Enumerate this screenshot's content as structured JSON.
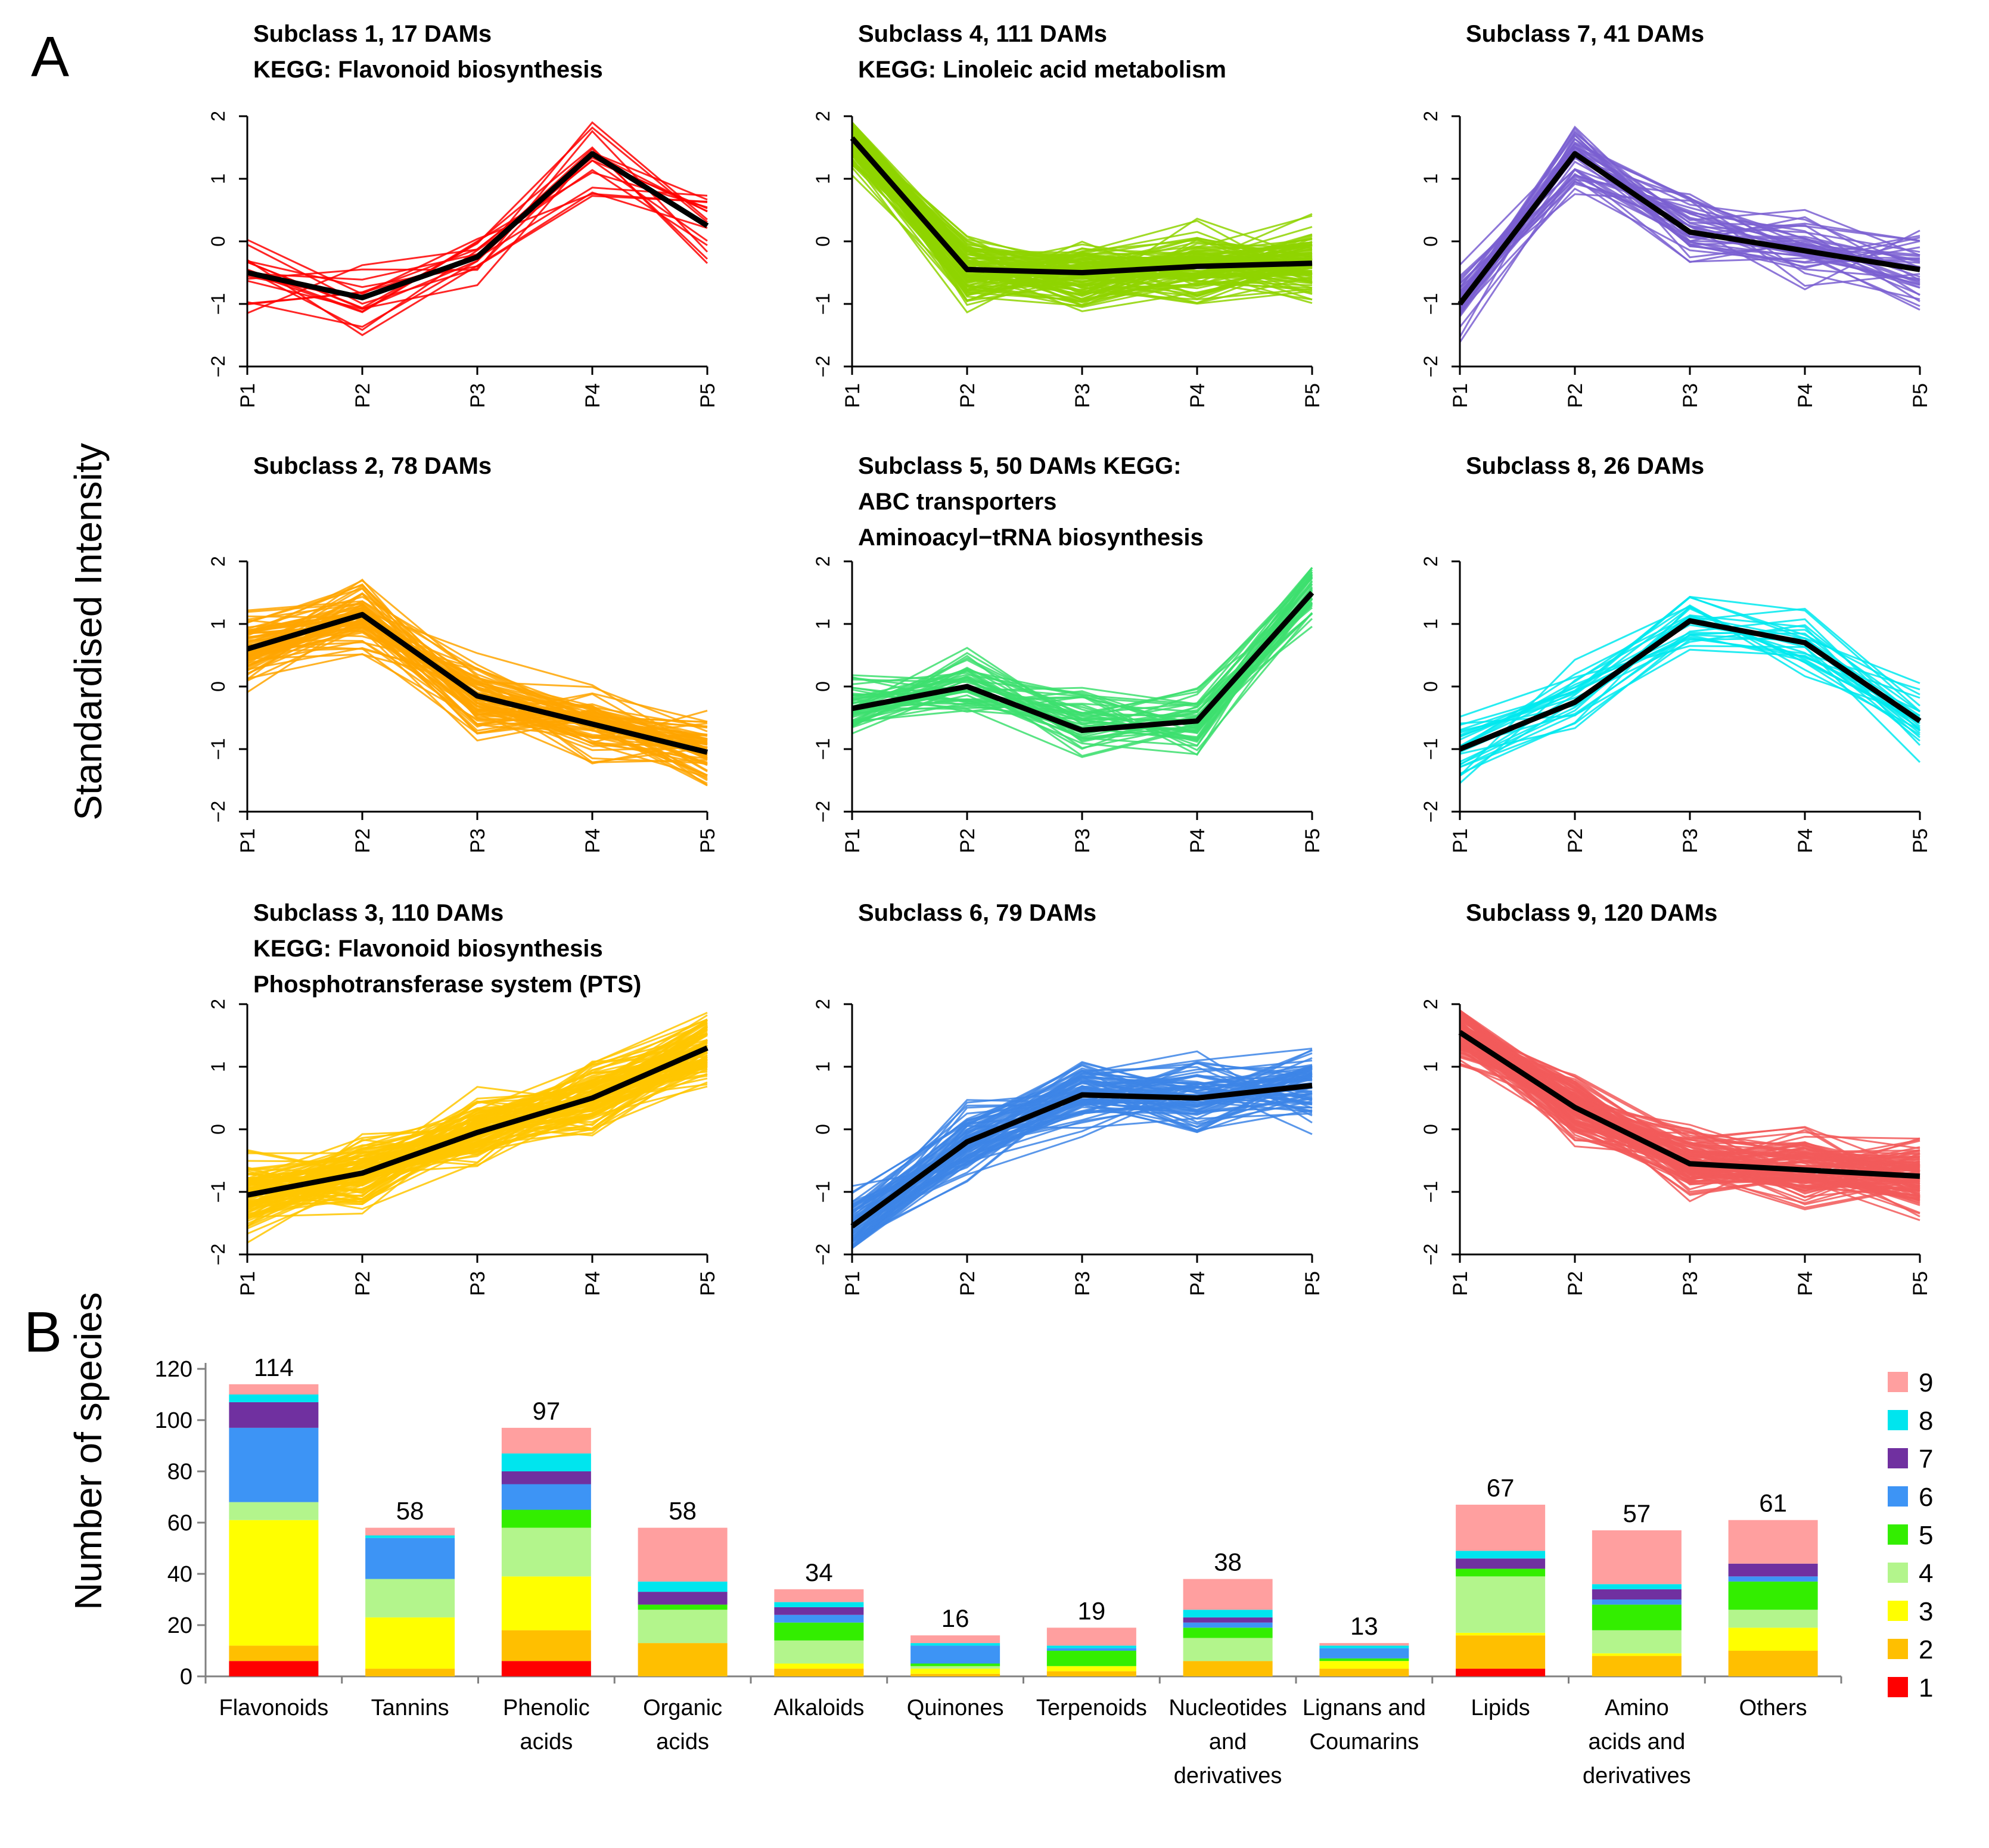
{
  "panel_labels": {
    "a": "A",
    "b": "B"
  },
  "chart_data": [
    {
      "panel": "A",
      "type": "line",
      "ylabel": "Standardised Intensity",
      "x": [
        "P1",
        "P2",
        "P3",
        "P4",
        "P5"
      ],
      "ylim": [
        -2,
        2
      ],
      "yticks": [
        "2",
        "1",
        "0",
        "−1",
        "−2"
      ],
      "subplots": [
        {
          "title_lines": [
            "Subclass 1, 17 DAMs",
            "KEGG: Flavonoid biosynthesis"
          ],
          "color": "#ff0000",
          "n_lines": 17,
          "mean": [
            -0.5,
            -0.9,
            -0.25,
            1.4,
            0.25
          ]
        },
        {
          "title_lines": [
            "Subclass 2, 78 DAMs"
          ],
          "color": "#ffa500",
          "n_lines": 78,
          "mean": [
            0.6,
            1.15,
            -0.15,
            -0.6,
            -1.05
          ]
        },
        {
          "title_lines": [
            "Subclass 3, 110 DAMs",
            "KEGG:    Flavonoid    biosynthesis",
            "Phosphotransferase system (PTS)"
          ],
          "color": "#ffc600",
          "n_lines": 110,
          "mean": [
            -1.05,
            -0.7,
            -0.05,
            0.5,
            1.3
          ]
        },
        {
          "title_lines": [
            "Subclass 4, 111 DAMs",
            "KEGG: Linoleic acid metabolism"
          ],
          "color": "#8fd400",
          "n_lines": 111,
          "mean": [
            1.65,
            -0.45,
            -0.5,
            -0.4,
            -0.35
          ]
        },
        {
          "title_lines": [
            "Subclass 5, 50 DAMs KEGG:",
            "ABC transporters",
            "Aminoacyl−tRNA biosynthesis"
          ],
          "color": "#3ddf6f",
          "n_lines": 50,
          "mean": [
            -0.35,
            0.0,
            -0.7,
            -0.55,
            1.5
          ]
        },
        {
          "title_lines": [
            "Subclass 6, 79 DAMs"
          ],
          "color": "#3d85e6",
          "n_lines": 79,
          "mean": [
            -1.55,
            -0.2,
            0.55,
            0.5,
            0.7
          ]
        },
        {
          "title_lines": [
            "Subclass 7, 41 DAMs"
          ],
          "color": "#7a5fd1",
          "n_lines": 41,
          "mean": [
            -1.0,
            1.4,
            0.15,
            -0.15,
            -0.45
          ]
        },
        {
          "title_lines": [
            "Subclass 8, 26 DAMs"
          ],
          "color": "#00e9ef",
          "n_lines": 26,
          "mean": [
            -1.0,
            -0.25,
            1.05,
            0.7,
            -0.55
          ]
        },
        {
          "title_lines": [
            "Subclass 9, 120 DAMs"
          ],
          "color": "#f25a5a",
          "n_lines": 120,
          "mean": [
            1.55,
            0.35,
            -0.55,
            -0.65,
            -0.75
          ]
        }
      ]
    },
    {
      "panel": "B",
      "type": "bar",
      "stacked": true,
      "ylabel": "Number of species",
      "ylim": [
        0,
        120
      ],
      "yticks": [
        0,
        20,
        40,
        60,
        80,
        100,
        120
      ],
      "categories": [
        [
          "Flavonoids"
        ],
        [
          "Tannins"
        ],
        [
          "Phenolic",
          "acids"
        ],
        [
          "Organic",
          "acids"
        ],
        [
          "Alkaloids"
        ],
        [
          "Quinones"
        ],
        [
          "Terpenoids"
        ],
        [
          "Nucleotides",
          "and",
          "derivatives"
        ],
        [
          "Lignans and",
          "Coumarins"
        ],
        [
          "Lipids"
        ],
        [
          "Amino",
          "acids and",
          "derivatives"
        ],
        [
          "Others"
        ]
      ],
      "totals": [
        114,
        58,
        97,
        58,
        34,
        16,
        19,
        38,
        13,
        67,
        57,
        61
      ],
      "series": [
        {
          "name": "1",
          "color": "#ff0000",
          "values": [
            6,
            0,
            6,
            0,
            0,
            0,
            0,
            0,
            0,
            3,
            0,
            0
          ]
        },
        {
          "name": "2",
          "color": "#ffbf00",
          "values": [
            6,
            3,
            12,
            13,
            3,
            1,
            2,
            6,
            3,
            13,
            8,
            10
          ]
        },
        {
          "name": "3",
          "color": "#ffff00",
          "values": [
            49,
            20,
            21,
            0,
            2,
            2,
            2,
            0,
            3,
            1,
            1,
            9
          ]
        },
        {
          "name": "4",
          "color": "#b3f58c",
          "values": [
            7,
            15,
            19,
            13,
            9,
            1,
            0,
            9,
            0,
            22,
            9,
            7
          ]
        },
        {
          "name": "5",
          "color": "#33ee00",
          "values": [
            0,
            0,
            7,
            2,
            7,
            1,
            6,
            4,
            1,
            3,
            10,
            11
          ]
        },
        {
          "name": "6",
          "color": "#3d94f5",
          "values": [
            29,
            16,
            10,
            0,
            3,
            7,
            1,
            2,
            4,
            0,
            2,
            2
          ]
        },
        {
          "name": "7",
          "color": "#7030a0",
          "values": [
            10,
            0,
            5,
            5,
            3,
            0,
            0,
            2,
            0,
            4,
            4,
            5
          ]
        },
        {
          "name": "8",
          "color": "#00e5ee",
          "values": [
            3,
            1,
            7,
            4,
            2,
            1,
            1,
            3,
            1,
            3,
            2,
            0
          ]
        },
        {
          "name": "9",
          "color": "#ff9f9f",
          "values": [
            4,
            3,
            10,
            21,
            5,
            3,
            7,
            12,
            1,
            18,
            21,
            17
          ]
        }
      ]
    }
  ]
}
